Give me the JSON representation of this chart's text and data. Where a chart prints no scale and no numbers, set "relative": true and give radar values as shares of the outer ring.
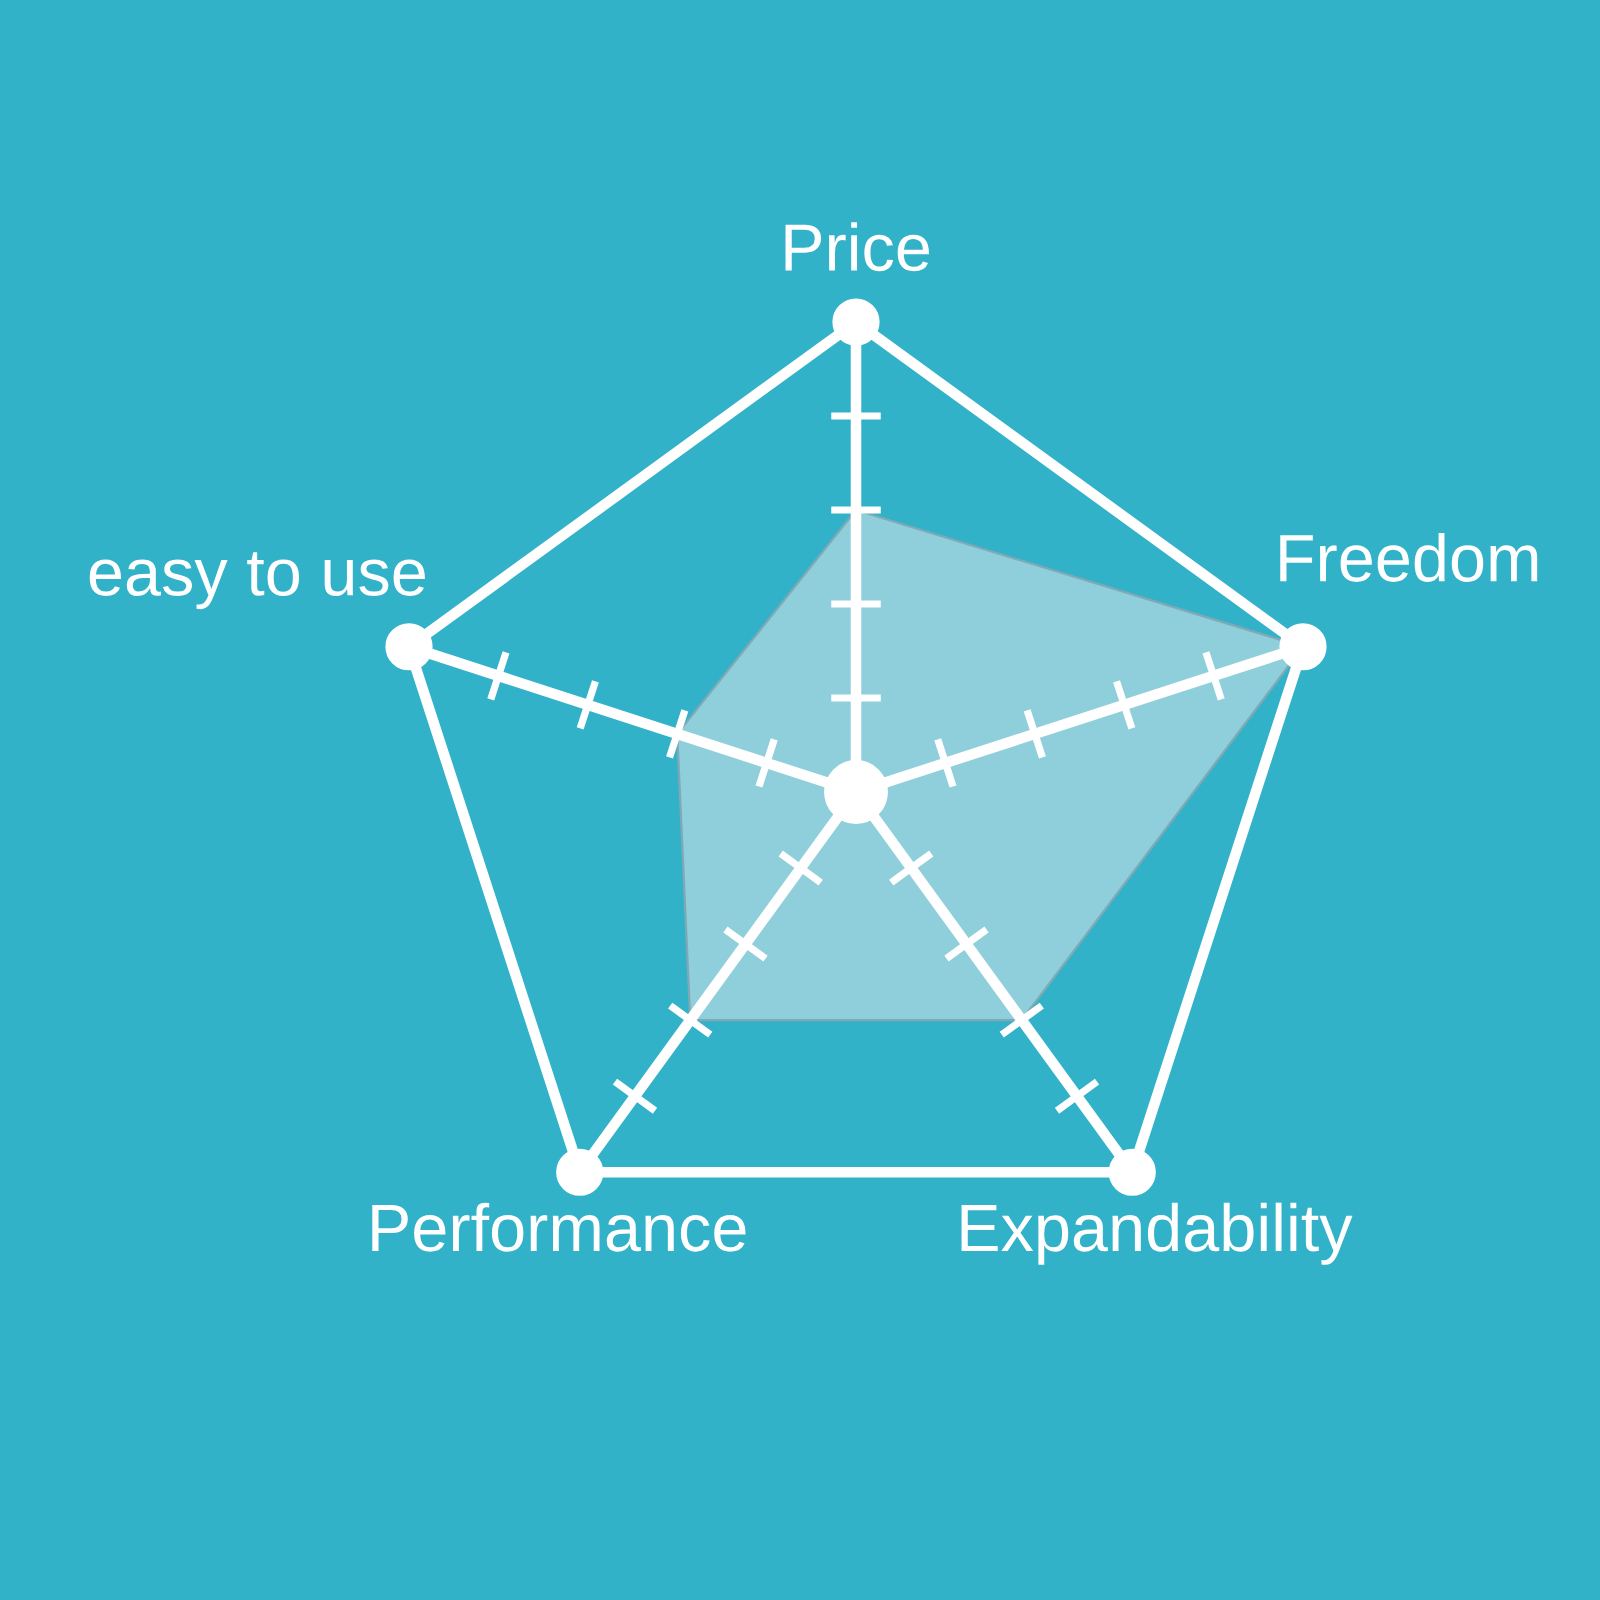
{
  "chart_data": {
    "type": "radar",
    "relative": true,
    "categories": [
      "Price",
      "Freedom",
      "Expandability",
      "Performance",
      "easy to use"
    ],
    "series": [
      {
        "color": "#8fcedb",
        "values": [
          0.6,
          1,
          0.6,
          0.6,
          0.4
        ]
      }
    ]
  }
}
